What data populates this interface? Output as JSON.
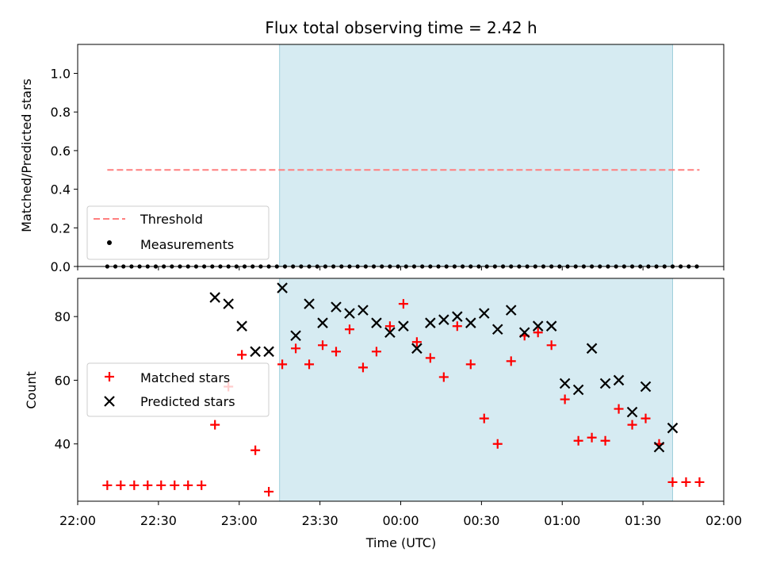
{
  "chart_data": [
    {
      "type": "scatter",
      "title": "Flux total observing time = 2.42 h",
      "xlabel": "",
      "ylabel": "Matched/Predicted stars",
      "xlim": [
        "22:00",
        "02:00"
      ],
      "ylim": [
        0,
        1.15
      ],
      "yticks": [
        0.0,
        0.2,
        0.4,
        0.6,
        0.8,
        1.0
      ],
      "ytick_labels": [
        "0.0",
        "0.2",
        "0.4",
        "0.6",
        "0.8",
        "1.0"
      ],
      "grid": false,
      "legend_position": "lower-left",
      "shaded_span": [
        "23:15",
        "01:41"
      ],
      "threshold": {
        "name": "Threshold",
        "y": 0.5,
        "x_start": "22:11",
        "x_end": "01:51",
        "color": "#ff7f7f",
        "style": "dashed"
      },
      "series": [
        {
          "name": "Measurements",
          "color": "#000000",
          "marker": "dot",
          "x": [
            "22:11",
            "22:14",
            "22:17",
            "22:20",
            "22:23",
            "22:26",
            "22:29",
            "22:32",
            "22:35",
            "22:38",
            "22:41",
            "22:44",
            "22:47",
            "22:50",
            "22:53",
            "22:56",
            "22:59",
            "23:02",
            "23:05",
            "23:08",
            "23:11",
            "23:14",
            "23:17",
            "23:20",
            "23:23",
            "23:26",
            "23:29",
            "23:32",
            "23:35",
            "23:38",
            "23:41",
            "23:44",
            "23:47",
            "23:50",
            "23:53",
            "23:56",
            "23:59",
            "00:02",
            "00:05",
            "00:08",
            "00:11",
            "00:14",
            "00:17",
            "00:20",
            "00:23",
            "00:26",
            "00:29",
            "00:32",
            "00:35",
            "00:38",
            "00:41",
            "00:44",
            "00:47",
            "00:50",
            "00:53",
            "00:56",
            "00:59",
            "01:02",
            "01:05",
            "01:08",
            "01:11",
            "01:14",
            "01:17",
            "01:20",
            "01:23",
            "01:26",
            "01:29",
            "01:32",
            "01:35",
            "01:38",
            "01:41",
            "01:44",
            "01:47",
            "01:50"
          ],
          "y": [
            0,
            0,
            0,
            0,
            0,
            0,
            0,
            0,
            0,
            0,
            0,
            0,
            0,
            0,
            0,
            0,
            0,
            0,
            0,
            0,
            0,
            0,
            0,
            0,
            0,
            0,
            0,
            0,
            0,
            0,
            0,
            0,
            0,
            0,
            0,
            0,
            0,
            0,
            0,
            0,
            0,
            0,
            0,
            0,
            0,
            0,
            0,
            0,
            0,
            0,
            0,
            0,
            0,
            0,
            0,
            0,
            0,
            0,
            0,
            0,
            0,
            0,
            0,
            0,
            0,
            0,
            0,
            0,
            0,
            0,
            0,
            0,
            0,
            0
          ]
        }
      ]
    },
    {
      "type": "scatter",
      "title": "",
      "xlabel": "Time (UTC)",
      "ylabel": "Count",
      "xlim": [
        "22:00",
        "02:00"
      ],
      "ylim": [
        22,
        92
      ],
      "yticks": [
        40,
        60,
        80
      ],
      "ytick_labels": [
        "40",
        "60",
        "80"
      ],
      "xticks": [
        "22:00",
        "22:30",
        "23:00",
        "23:30",
        "00:00",
        "00:30",
        "01:00",
        "01:30",
        "02:00"
      ],
      "grid": false,
      "legend_position": "center-left",
      "shaded_span": [
        "23:15",
        "01:41"
      ],
      "series": [
        {
          "name": "Matched stars",
          "color": "#ff0000",
          "marker": "plus",
          "x": [
            "22:11",
            "22:16",
            "22:21",
            "22:26",
            "22:31",
            "22:36",
            "22:41",
            "22:46",
            "22:51",
            "22:56",
            "23:01",
            "23:06",
            "23:11",
            "23:16",
            "23:21",
            "23:26",
            "23:31",
            "23:36",
            "23:41",
            "23:46",
            "23:51",
            "23:56",
            "00:01",
            "00:06",
            "00:11",
            "00:16",
            "00:21",
            "00:26",
            "00:31",
            "00:36",
            "00:41",
            "00:46",
            "00:51",
            "00:56",
            "01:01",
            "01:06",
            "01:11",
            "01:16",
            "01:21",
            "01:26",
            "01:31",
            "01:36",
            "01:41",
            "01:46",
            "01:51"
          ],
          "y": [
            27,
            27,
            27,
            27,
            27,
            27,
            27,
            27,
            46,
            58,
            68,
            38,
            25,
            65,
            70,
            65,
            71,
            69,
            76,
            64,
            69,
            77,
            84,
            72,
            67,
            61,
            77,
            65,
            48,
            40,
            66,
            74,
            75,
            71,
            54,
            41,
            42,
            41,
            51,
            46,
            48,
            40,
            28,
            28,
            28
          ]
        },
        {
          "name": "Predicted stars",
          "color": "#000000",
          "marker": "x",
          "x": [
            "22:51",
            "22:56",
            "23:01",
            "23:06",
            "23:11",
            "23:16",
            "23:21",
            "23:26",
            "23:31",
            "23:36",
            "23:41",
            "23:46",
            "23:51",
            "23:56",
            "00:01",
            "00:06",
            "00:11",
            "00:16",
            "00:21",
            "00:26",
            "00:31",
            "00:36",
            "00:41",
            "00:46",
            "00:51",
            "00:56",
            "01:01",
            "01:06",
            "01:11",
            "01:16",
            "01:21",
            "01:26",
            "01:31",
            "01:36",
            "01:41"
          ],
          "y": [
            86,
            84,
            77,
            69,
            69,
            89,
            74,
            84,
            78,
            83,
            81,
            82,
            78,
            75,
            77,
            70,
            78,
            79,
            80,
            78,
            81,
            76,
            82,
            75,
            77,
            77,
            59,
            57,
            70,
            59,
            60,
            50,
            58,
            39,
            45
          ]
        }
      ]
    }
  ]
}
